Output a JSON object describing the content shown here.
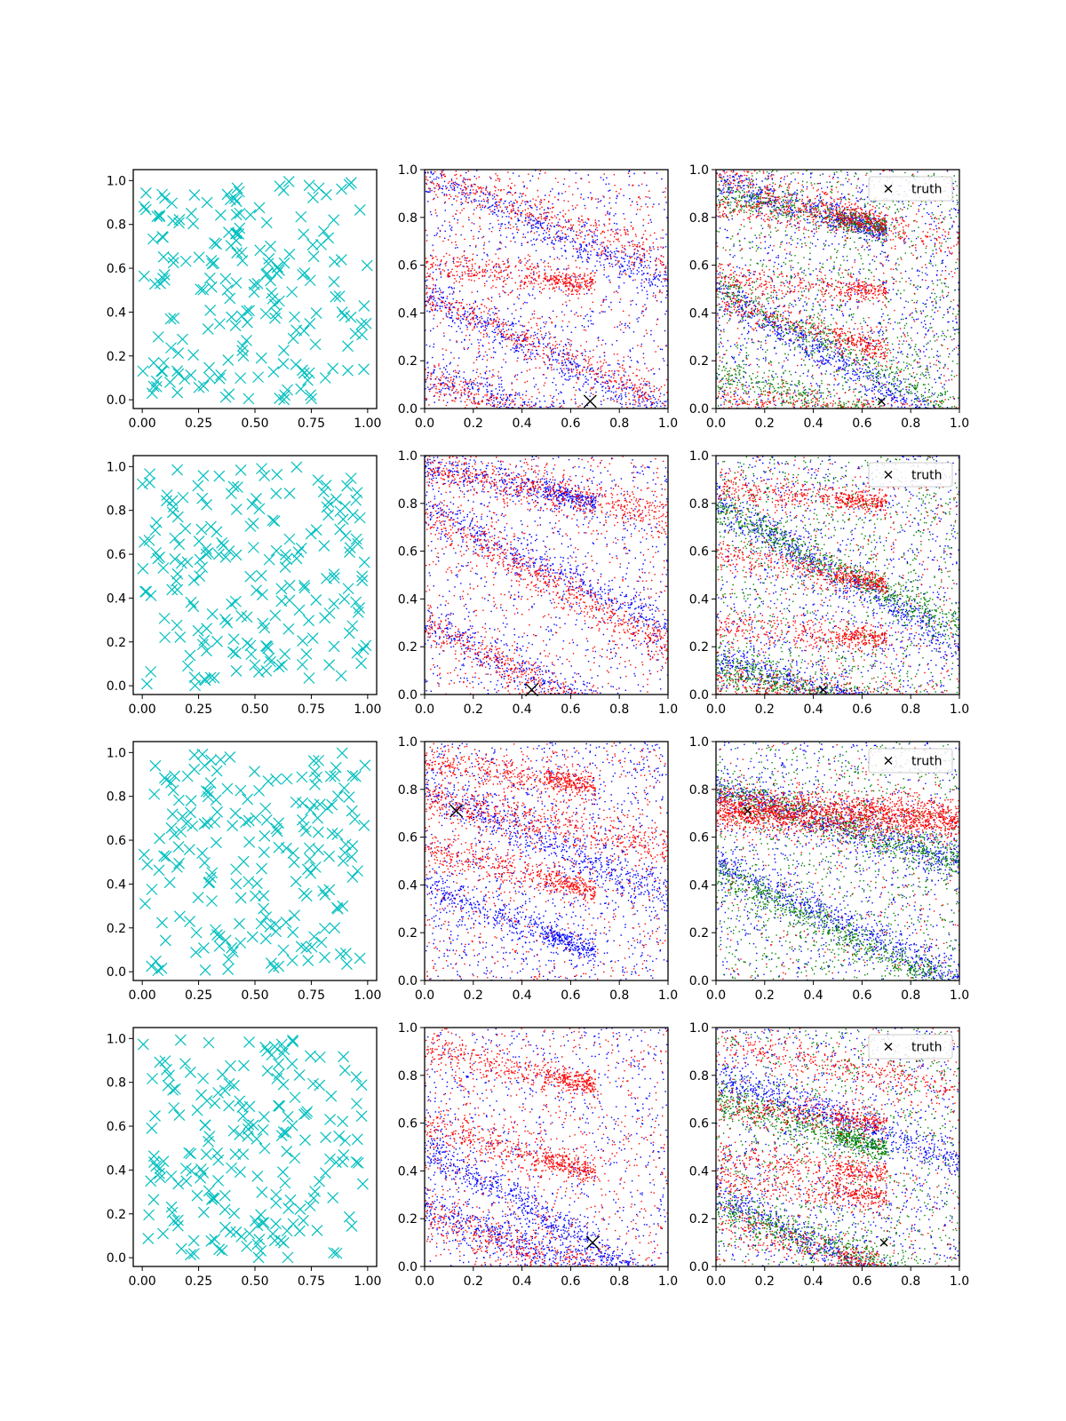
{
  "colors": {
    "samples": "#00bfbf",
    "blue": "#0000ff",
    "red": "#ff0000",
    "green": "#008000",
    "truth": "#000000",
    "axes": "#000000",
    "legend_border": "#cccccc"
  },
  "chart_data": [
    {
      "type": "scatter",
      "row": 0,
      "col": 0,
      "xlim": [
        -0.04,
        1.04
      ],
      "ylim": [
        -0.04,
        1.05
      ],
      "xticks": [
        "0.00",
        "0.25",
        "0.50",
        "0.75",
        "1.00"
      ],
      "yticks": [
        "0.0",
        "0.2",
        "0.4",
        "0.6",
        "0.8",
        "1.0"
      ],
      "marker": "x",
      "series": [
        {
          "color": "samples",
          "kind": "uniform",
          "n": 200,
          "seed": 11
        }
      ]
    },
    {
      "type": "scatter",
      "row": 0,
      "col": 1,
      "xlim": [
        0,
        1
      ],
      "ylim": [
        0,
        1
      ],
      "xticks": [
        "0.0",
        "0.2",
        "0.4",
        "0.6",
        "0.8",
        "1.0"
      ],
      "yticks": [
        "0.0",
        "0.2",
        "0.4",
        "0.6",
        "0.8",
        "1.0"
      ],
      "marker": "dot",
      "series": [
        {
          "color": "blue",
          "n": 2200,
          "seed": 21,
          "bands": [
            [
              0.98,
              -0.45,
              0.3
            ],
            [
              0.48,
              -0.5,
              0.25
            ],
            [
              0.15,
              -0.35,
              0.35
            ]
          ],
          "noise": 0.35
        },
        {
          "color": "red",
          "n": 2200,
          "seed": 22,
          "bands": [
            [
              0.98,
              -0.35,
              0.35
            ],
            [
              0.48,
              -0.45,
              0.3
            ],
            [
              0.12,
              -0.3,
              0.2
            ],
            [
              0.6,
              -0.1,
              0.1
            ]
          ],
          "noise": 0.25
        }
      ],
      "truth": {
        "x": 0.68,
        "y": 0.03
      }
    },
    {
      "type": "scatter",
      "row": 0,
      "col": 2,
      "xlim": [
        0,
        1
      ],
      "ylim": [
        0,
        1
      ],
      "xticks": [
        "0.0",
        "0.2",
        "0.4",
        "0.6",
        "0.8",
        "1.0"
      ],
      "yticks": [
        "0.0",
        "0.2",
        "0.4",
        "0.6",
        "0.8",
        "1.0"
      ],
      "marker": "dot",
      "series": [
        {
          "color": "blue",
          "n": 2200,
          "seed": 31,
          "bands": [
            [
              0.5,
              -0.6,
              0.3
            ],
            [
              0.95,
              -0.3,
              0.2
            ]
          ],
          "noise": 0.45
        },
        {
          "color": "green",
          "n": 2200,
          "seed": 32,
          "bands": [
            [
              0.5,
              -0.5,
              0.3
            ],
            [
              0.15,
              -0.3,
              0.2
            ],
            [
              0.9,
              -0.2,
              0.15
            ]
          ],
          "noise": 0.4
        },
        {
          "color": "red",
          "n": 2200,
          "seed": 33,
          "bands": [
            [
              0.98,
              -0.3,
              0.35
            ],
            [
              0.45,
              -0.3,
              0.2
            ],
            [
              0.06,
              -0.12,
              0.25
            ],
            [
              0.85,
              -0.1,
              0.15
            ],
            [
              0.55,
              -0.08,
              0.1
            ]
          ],
          "noise": 0.2
        }
      ],
      "truth": {
        "x": 0.68,
        "y": 0.03
      },
      "legend": {
        "label": "truth",
        "position": "upper right"
      }
    },
    {
      "type": "scatter",
      "row": 1,
      "col": 0,
      "xlim": [
        -0.04,
        1.04
      ],
      "ylim": [
        -0.04,
        1.05
      ],
      "xticks": [
        "0.00",
        "0.25",
        "0.50",
        "0.75",
        "1.00"
      ],
      "yticks": [
        "0.0",
        "0.2",
        "0.4",
        "0.6",
        "0.8",
        "1.0"
      ],
      "marker": "x",
      "series": [
        {
          "color": "samples",
          "kind": "uniform",
          "n": 200,
          "seed": 41
        }
      ]
    },
    {
      "type": "scatter",
      "row": 1,
      "col": 1,
      "xlim": [
        0,
        1
      ],
      "ylim": [
        0,
        1
      ],
      "xticks": [
        "0.0",
        "0.2",
        "0.4",
        "0.6",
        "0.8",
        "1.0"
      ],
      "yticks": [
        "0.0",
        "0.2",
        "0.4",
        "0.6",
        "0.8",
        "1.0"
      ],
      "marker": "dot",
      "series": [
        {
          "color": "blue",
          "n": 2200,
          "seed": 51,
          "bands": [
            [
              0.78,
              -0.5,
              0.35
            ],
            [
              0.3,
              -0.5,
              0.35
            ],
            [
              0.95,
              -0.2,
              0.2
            ]
          ],
          "noise": 0.35
        },
        {
          "color": "red",
          "n": 2200,
          "seed": 52,
          "bands": [
            [
              0.75,
              -0.55,
              0.35
            ],
            [
              0.3,
              -0.55,
              0.3
            ],
            [
              0.95,
              -0.2,
              0.25
            ]
          ],
          "noise": 0.3
        }
      ],
      "truth": {
        "x": 0.44,
        "y": 0.02
      }
    },
    {
      "type": "scatter",
      "row": 1,
      "col": 2,
      "xlim": [
        0,
        1
      ],
      "ylim": [
        0,
        1
      ],
      "xticks": [
        "0.0",
        "0.2",
        "0.4",
        "0.6",
        "0.8",
        "1.0"
      ],
      "yticks": [
        "0.0",
        "0.2",
        "0.4",
        "0.6",
        "0.8",
        "1.0"
      ],
      "marker": "dot",
      "series": [
        {
          "color": "blue",
          "n": 2200,
          "seed": 61,
          "bands": [
            [
              0.8,
              -0.6,
              0.3
            ],
            [
              0.15,
              -0.3,
              0.2
            ]
          ],
          "noise": 0.45
        },
        {
          "color": "green",
          "n": 2200,
          "seed": 62,
          "bands": [
            [
              0.78,
              -0.5,
              0.3
            ],
            [
              0.12,
              -0.25,
              0.3
            ]
          ],
          "noise": 0.4
        },
        {
          "color": "red",
          "n": 2200,
          "seed": 63,
          "bands": [
            [
              0.05,
              -0.1,
              0.3
            ],
            [
              0.6,
              -0.2,
              0.15
            ],
            [
              0.3,
              -0.1,
              0.15
            ],
            [
              0.87,
              -0.1,
              0.1
            ]
          ],
          "noise": 0.2
        }
      ],
      "truth": {
        "x": 0.44,
        "y": 0.02
      },
      "legend": {
        "label": "truth",
        "position": "upper right"
      }
    },
    {
      "type": "scatter",
      "row": 2,
      "col": 0,
      "xlim": [
        -0.04,
        1.04
      ],
      "ylim": [
        -0.04,
        1.05
      ],
      "xticks": [
        "0.00",
        "0.25",
        "0.50",
        "0.75",
        "1.00"
      ],
      "yticks": [
        "0.0",
        "0.2",
        "0.4",
        "0.6",
        "0.8",
        "1.0"
      ],
      "marker": "x",
      "series": [
        {
          "color": "samples",
          "kind": "uniform",
          "n": 200,
          "seed": 71
        }
      ]
    },
    {
      "type": "scatter",
      "row": 2,
      "col": 1,
      "xlim": [
        0,
        1
      ],
      "ylim": [
        0,
        1
      ],
      "xticks": [
        "0.0",
        "0.2",
        "0.4",
        "0.6",
        "0.8",
        "1.0"
      ],
      "yticks": [
        "0.0",
        "0.2",
        "0.4",
        "0.6",
        "0.8",
        "1.0"
      ],
      "marker": "dot",
      "series": [
        {
          "color": "blue",
          "n": 2200,
          "seed": 81,
          "bands": [
            [
              0.8,
              -0.45,
              0.35
            ],
            [
              0.4,
              -0.4,
              0.2
            ]
          ],
          "noise": 0.5
        },
        {
          "color": "red",
          "n": 2200,
          "seed": 82,
          "bands": [
            [
              0.76,
              -0.2,
              0.4
            ],
            [
              0.55,
              -0.25,
              0.2
            ],
            [
              0.92,
              -0.15,
              0.15
            ]
          ],
          "noise": 0.3
        }
      ],
      "truth": {
        "x": 0.13,
        "y": 0.71
      }
    },
    {
      "type": "scatter",
      "row": 2,
      "col": 2,
      "xlim": [
        0,
        1
      ],
      "ylim": [
        0,
        1
      ],
      "xticks": [
        "0.0",
        "0.2",
        "0.4",
        "0.6",
        "0.8",
        "1.0"
      ],
      "yticks": [
        "0.0",
        "0.2",
        "0.4",
        "0.6",
        "0.8",
        "1.0"
      ],
      "marker": "dot",
      "series": [
        {
          "color": "blue",
          "n": 2200,
          "seed": 91,
          "bands": [
            [
              0.8,
              -0.3,
              0.35
            ],
            [
              0.5,
              -0.5,
              0.25
            ]
          ],
          "noise": 0.4
        },
        {
          "color": "green",
          "n": 2200,
          "seed": 92,
          "bands": [
            [
              0.8,
              -0.3,
              0.35
            ],
            [
              0.45,
              -0.5,
              0.3
            ]
          ],
          "noise": 0.4
        },
        {
          "color": "red",
          "n": 2200,
          "seed": 93,
          "bands": [
            [
              0.72,
              -0.05,
              0.45
            ]
          ],
          "noise": 0.15
        }
      ],
      "truth": {
        "x": 0.13,
        "y": 0.71
      },
      "legend": {
        "label": "truth",
        "position": "upper right"
      }
    },
    {
      "type": "scatter",
      "row": 3,
      "col": 0,
      "xlim": [
        -0.04,
        1.04
      ],
      "ylim": [
        -0.04,
        1.05
      ],
      "xticks": [
        "0.00",
        "0.25",
        "0.50",
        "0.75",
        "1.00"
      ],
      "yticks": [
        "0.0",
        "0.2",
        "0.4",
        "0.6",
        "0.8",
        "1.0"
      ],
      "marker": "x",
      "series": [
        {
          "color": "samples",
          "kind": "uniform",
          "n": 200,
          "seed": 101
        }
      ]
    },
    {
      "type": "scatter",
      "row": 3,
      "col": 1,
      "xlim": [
        0,
        1
      ],
      "ylim": [
        0,
        1
      ],
      "xticks": [
        "0.0",
        "0.2",
        "0.4",
        "0.6",
        "0.8",
        "1.0"
      ],
      "yticks": [
        "0.0",
        "0.2",
        "0.4",
        "0.6",
        "0.8",
        "1.0"
      ],
      "marker": "dot",
      "series": [
        {
          "color": "blue",
          "n": 2200,
          "seed": 111,
          "bands": [
            [
              0.25,
              -0.4,
              0.4
            ],
            [
              0.5,
              -0.6,
              0.25
            ]
          ],
          "noise": 0.4
        },
        {
          "color": "red",
          "n": 2200,
          "seed": 112,
          "bands": [
            [
              0.22,
              -0.35,
              0.45
            ],
            [
              0.9,
              -0.2,
              0.15
            ],
            [
              0.6,
              -0.3,
              0.15
            ]
          ],
          "noise": 0.35
        }
      ],
      "truth": {
        "x": 0.69,
        "y": 0.1
      }
    },
    {
      "type": "scatter",
      "row": 3,
      "col": 2,
      "xlim": [
        0,
        1
      ],
      "ylim": [
        0,
        1
      ],
      "xticks": [
        "0.0",
        "0.2",
        "0.4",
        "0.6",
        "0.8",
        "1.0"
      ],
      "yticks": [
        "0.0",
        "0.2",
        "0.4",
        "0.6",
        "0.8",
        "1.0"
      ],
      "marker": "dot",
      "series": [
        {
          "color": "blue",
          "n": 2200,
          "seed": 121,
          "bands": [
            [
              0.8,
              -0.35,
              0.3
            ],
            [
              0.3,
              -0.5,
              0.25
            ]
          ],
          "noise": 0.45
        },
        {
          "color": "green",
          "n": 2200,
          "seed": 122,
          "bands": [
            [
              0.25,
              -0.35,
              0.3
            ],
            [
              0.7,
              -0.3,
              0.2
            ]
          ],
          "noise": 0.4
        },
        {
          "color": "red",
          "n": 2200,
          "seed": 123,
          "bands": [
            [
              0.94,
              -0.2,
              0.3
            ],
            [
              0.46,
              -0.1,
              0.15
            ],
            [
              0.36,
              -0.1,
              0.15
            ],
            [
              0.2,
              -0.3,
              0.2
            ],
            [
              0.67,
              -0.1,
              0.15
            ]
          ],
          "noise": 0.2
        }
      ],
      "truth": {
        "x": 0.69,
        "y": 0.1
      },
      "legend": {
        "label": "truth",
        "position": "upper right"
      }
    }
  ]
}
